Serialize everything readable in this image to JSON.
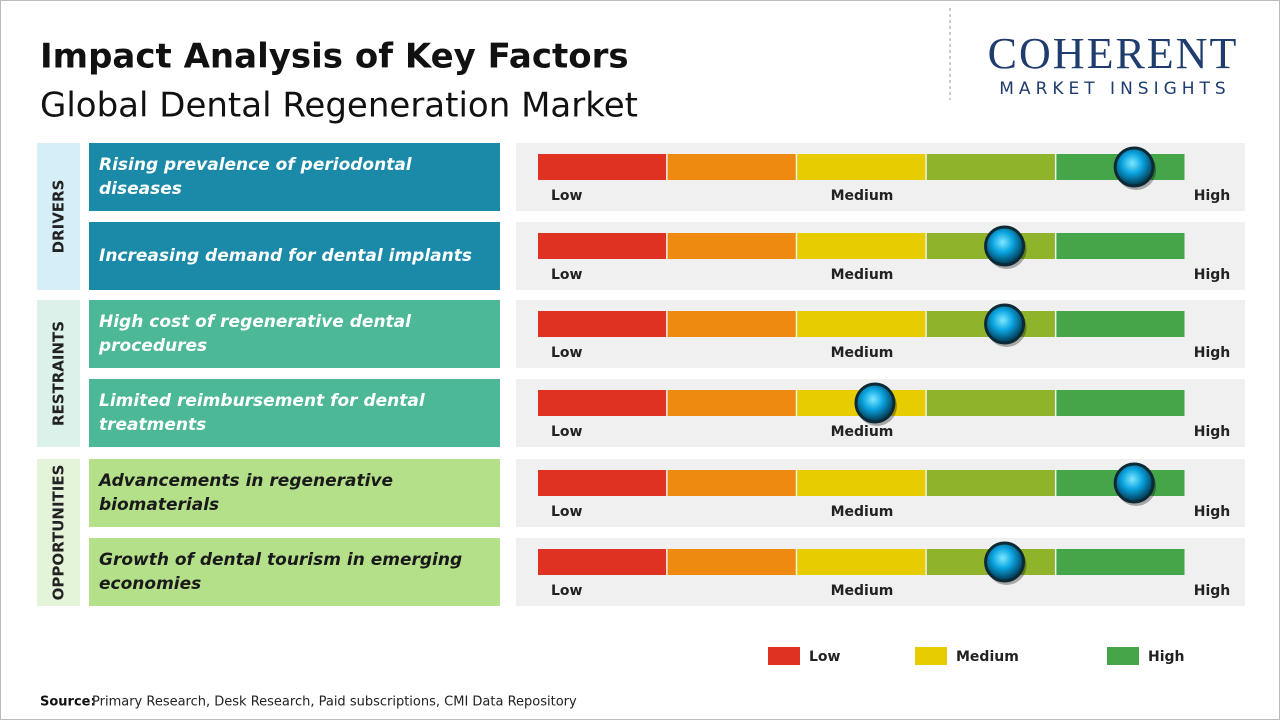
{
  "header": {
    "title": "Impact Analysis of Key Factors",
    "subtitle": "Global Dental Regeneration Market"
  },
  "logo": {
    "name": "COHERENT",
    "tagline": "MARKET INSIGHTS"
  },
  "chart_data": {
    "type": "impact-gauge",
    "xlim": [
      0,
      5
    ],
    "scale_labels": [
      "Low",
      "Medium",
      "High"
    ],
    "segment_colors": [
      "#e03222",
      "#ef8a10",
      "#e6cc00",
      "#8fb32a",
      "#44a648"
    ],
    "groups": [
      {
        "name": "DRIVERS",
        "color": "#1a8aa8",
        "side_color": "#d6eef7",
        "text_color": "#ffffff",
        "factors": [
          {
            "label": "Rising prevalence of periodontal diseases",
            "value": 4.6
          },
          {
            "label": "Increasing demand for dental implants",
            "value": 3.6
          }
        ]
      },
      {
        "name": "RESTRAINTS",
        "color": "#4db898",
        "side_color": "#dcf1ea",
        "text_color": "#ffffff",
        "factors": [
          {
            "label": "High cost of regenerative dental procedures",
            "value": 3.6
          },
          {
            "label": "Limited reimbursement for dental treatments",
            "value": 2.6
          }
        ]
      },
      {
        "name": "OPPORTUNITIES",
        "color": "#b5e08a",
        "side_color": "#e4f4d9",
        "text_color": "#1a1a1a",
        "factors": [
          {
            "label": "Advancements in regenerative biomaterials",
            "value": 4.6
          },
          {
            "label": "Growth of dental tourism in emerging economies",
            "value": 3.6
          }
        ]
      }
    ],
    "legend": [
      {
        "name": "Low",
        "color": "#e03222"
      },
      {
        "name": "Medium",
        "color": "#e6cc00"
      },
      {
        "name": "High",
        "color": "#44a648"
      }
    ]
  },
  "source": {
    "label": "Source:",
    "text": "Primary Research, Desk Research, Paid subscriptions, CMI Data Repository"
  }
}
